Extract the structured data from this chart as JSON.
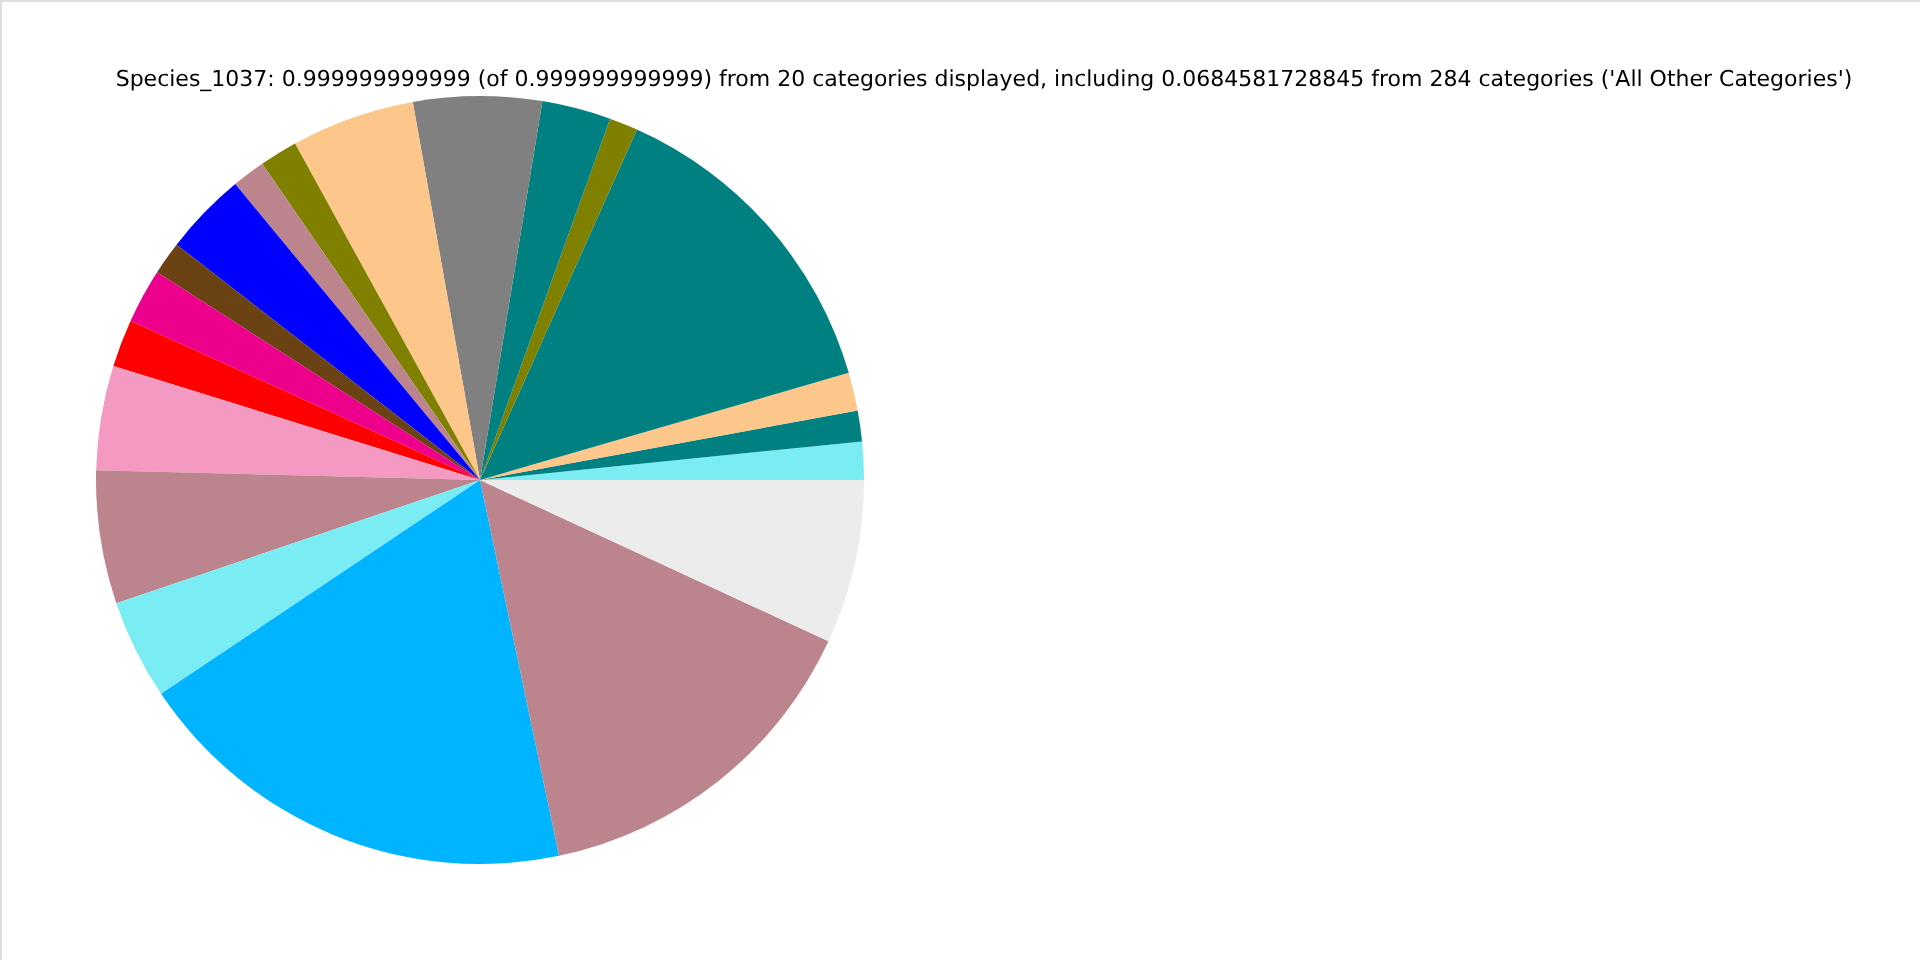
{
  "chart_data": {
    "type": "pie",
    "title": "Species_1037: 0.999999999999 (of 0.999999999999) from 20 categories displayed, including 0.0684581728845 from 284 categories ('All Other Categories')",
    "categories": [
      null,
      null,
      null,
      null,
      null,
      null,
      null,
      null,
      null,
      null,
      null,
      null,
      null,
      null,
      null,
      null,
      null,
      null,
      null,
      null
    ],
    "values": [
      1.6,
      1.3,
      1.6,
      13.8,
      1.2,
      2.9,
      5.4,
      5.2,
      1.6,
      1.4,
      3.5,
      1.4,
      2.3,
      2.0,
      4.4,
      5.6,
      4.2,
      18.9,
      14.8,
      6.9
    ],
    "colors": [
      "#7aecf3",
      "#008080",
      "#fdc68a",
      "#008080",
      "#808000",
      "#008080",
      "#808080",
      "#fdc68a",
      "#808000",
      "#bc848c",
      "#0000ff",
      "#6b4214",
      "#ec008c",
      "#ff0000",
      "#f49ac2",
      "#bc848c",
      "#7aecf3",
      "#00b4ff",
      "#bc848c",
      "#ececec"
    ]
  }
}
